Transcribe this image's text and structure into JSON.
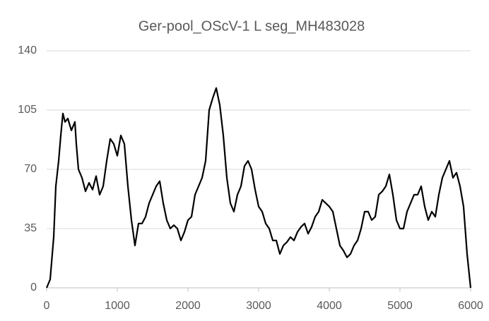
{
  "chart_data": {
    "type": "line",
    "title": "Ger-pool_OScV-1 L seg_MH483028",
    "x": [
      0,
      50,
      100,
      130,
      170,
      200,
      230,
      260,
      300,
      350,
      400,
      420,
      450,
      500,
      550,
      600,
      650,
      700,
      750,
      800,
      850,
      900,
      950,
      1000,
      1050,
      1100,
      1150,
      1200,
      1250,
      1300,
      1350,
      1400,
      1450,
      1500,
      1550,
      1600,
      1650,
      1700,
      1750,
      1800,
      1850,
      1900,
      1950,
      2000,
      2050,
      2100,
      2150,
      2200,
      2250,
      2300,
      2350,
      2400,
      2450,
      2500,
      2550,
      2600,
      2650,
      2700,
      2750,
      2800,
      2850,
      2900,
      2950,
      3000,
      3050,
      3100,
      3150,
      3200,
      3250,
      3300,
      3350,
      3400,
      3450,
      3500,
      3550,
      3600,
      3650,
      3700,
      3750,
      3800,
      3850,
      3900,
      3950,
      4000,
      4050,
      4100,
      4150,
      4200,
      4250,
      4300,
      4350,
      4400,
      4450,
      4500,
      4550,
      4600,
      4650,
      4700,
      4750,
      4800,
      4850,
      4900,
      4950,
      5000,
      5050,
      5100,
      5150,
      5200,
      5250,
      5300,
      5350,
      5400,
      5450,
      5500,
      5550,
      5600,
      5650,
      5700,
      5750,
      5800,
      5850,
      5900,
      5950,
      6000
    ],
    "series": [
      {
        "color": "#000000",
        "values": [
          0,
          5,
          30,
          60,
          75,
          90,
          103,
          98,
          100,
          93,
          98,
          85,
          70,
          65,
          57,
          62,
          58,
          66,
          55,
          60,
          75,
          88,
          85,
          78,
          90,
          85,
          60,
          40,
          25,
          38,
          38,
          42,
          50,
          55,
          60,
          63,
          50,
          40,
          35,
          37,
          35,
          28,
          33,
          40,
          42,
          55,
          60,
          65,
          75,
          105,
          112,
          118,
          108,
          90,
          65,
          50,
          45,
          55,
          60,
          72,
          75,
          70,
          58,
          48,
          45,
          38,
          35,
          28,
          28,
          20,
          25,
          27,
          30,
          28,
          33,
          36,
          38,
          32,
          36,
          42,
          45,
          52,
          50,
          48,
          45,
          35,
          25,
          22,
          18,
          20,
          25,
          28,
          35,
          45,
          45,
          40,
          42,
          55,
          57,
          60,
          67,
          55,
          40,
          35,
          35,
          45,
          50,
          55,
          55,
          60,
          48,
          40,
          45,
          42,
          55,
          65,
          70,
          75,
          65,
          68,
          60,
          48,
          20,
          0
        ]
      }
    ],
    "xlim": [
      0,
      6000
    ],
    "xticks": [
      0,
      1000,
      2000,
      3000,
      4000,
      5000,
      6000
    ],
    "ylim": [
      0,
      140
    ],
    "yticks": [
      0,
      35,
      70,
      105,
      140
    ],
    "grid": true
  }
}
